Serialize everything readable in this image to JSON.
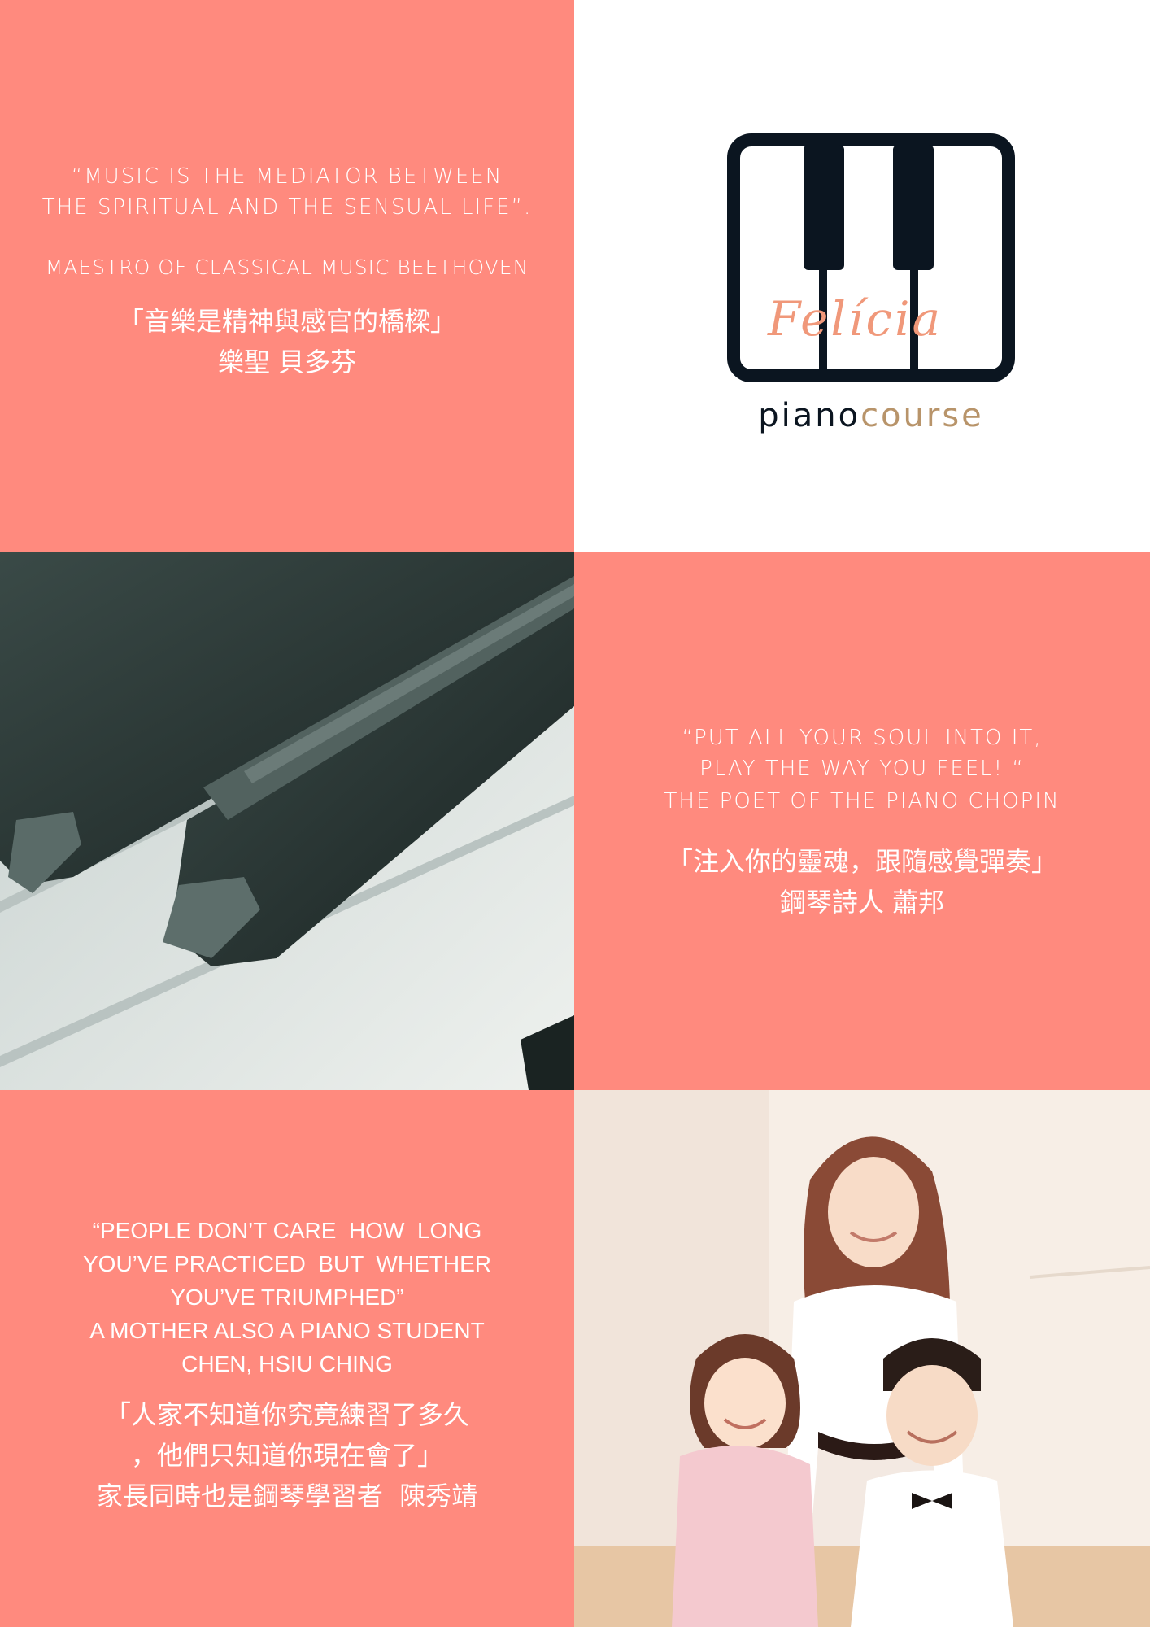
{
  "beethoven": {
    "en_line1": "“MUSIC IS THE MEDIATOR BETWEEN",
    "en_line2": "THE SPIRITUAL AND THE SENSUAL LIFE”.",
    "attribution": "MAESTRO OF CLASSICAL MUSIC BEETHOVEN",
    "zh_quote": "「音樂是精神與感官的橋樑」",
    "zh_attribution": "樂聖 貝多芬"
  },
  "logo": {
    "brand_script": "Felícia",
    "word_piano": "piano",
    "word_course": "course",
    "colors": {
      "frame": "#0b1520",
      "script": "#f0987a",
      "course": "#b8946a"
    }
  },
  "chopin": {
    "en_line1": "“PUT ALL YOUR SOUL INTO IT,",
    "en_line2": "PLAY THE WAY YOU FEEL! “",
    "attribution": "THE POET OF THE PIANO CHOPIN",
    "zh_quote": "「注入你的靈魂，跟隨感覺彈奏」",
    "zh_attribution": "鋼琴詩人 蕭邦"
  },
  "parent": {
    "en_line1": "“PEOPLE DON’T CARE  HOW  LONG",
    "en_line2": "YOU’VE PRACTICED  BUT  WHETHER",
    "en_line3": "YOU’VE TRIUMPHED”",
    "attribution_line1": "A MOTHER ALSO A PIANO STUDENT",
    "attribution_line2": "CHEN, HSIU CHING",
    "zh_line1": "「人家不知道你究竟練習了多久",
    "zh_line2": "，他們只知道你現在會了」",
    "zh_line3": "家長同時也是鋼琴學習者  陳秀靖"
  },
  "colors": {
    "salmon": "#ff8a7e",
    "white": "#ffffff"
  },
  "images": {
    "piano_keys": "piano-keys-photo",
    "teacher_students": "teacher-with-two-students-photo"
  }
}
